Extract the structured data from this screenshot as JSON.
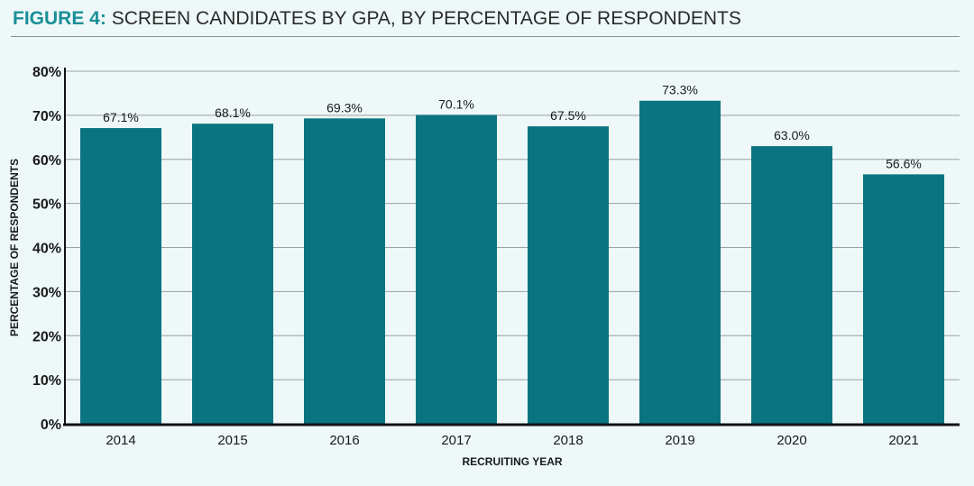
{
  "figure": {
    "label": "FIGURE 4:",
    "title": "SCREEN CANDIDATES BY GPA, BY PERCENTAGE OF RESPONDENTS"
  },
  "colors": {
    "bar": "#0a7480",
    "title_label": "#1a8f98",
    "background": "#eef8f8",
    "gridline": "#9aa0a3"
  },
  "chart_data": {
    "type": "bar",
    "categories": [
      "2014",
      "2015",
      "2016",
      "2017",
      "2018",
      "2019",
      "2020",
      "2021"
    ],
    "values": [
      67.1,
      68.1,
      69.3,
      70.1,
      67.5,
      73.3,
      63.0,
      56.6
    ],
    "data_labels": [
      "67.1%",
      "68.1%",
      "69.3%",
      "70.1%",
      "67.5%",
      "73.3%",
      "63.0%",
      "56.6%"
    ],
    "xlabel": "RECRUITING YEAR",
    "ylabel": "PERCENTAGE OF RESPONDENTS",
    "ylim": [
      0,
      80
    ],
    "yticks": [
      0,
      10,
      20,
      30,
      40,
      50,
      60,
      70,
      80
    ],
    "ytick_labels": [
      "0%",
      "10%",
      "20%",
      "30%",
      "40%",
      "50%",
      "60%",
      "70%",
      "80%"
    ],
    "grid": true
  }
}
